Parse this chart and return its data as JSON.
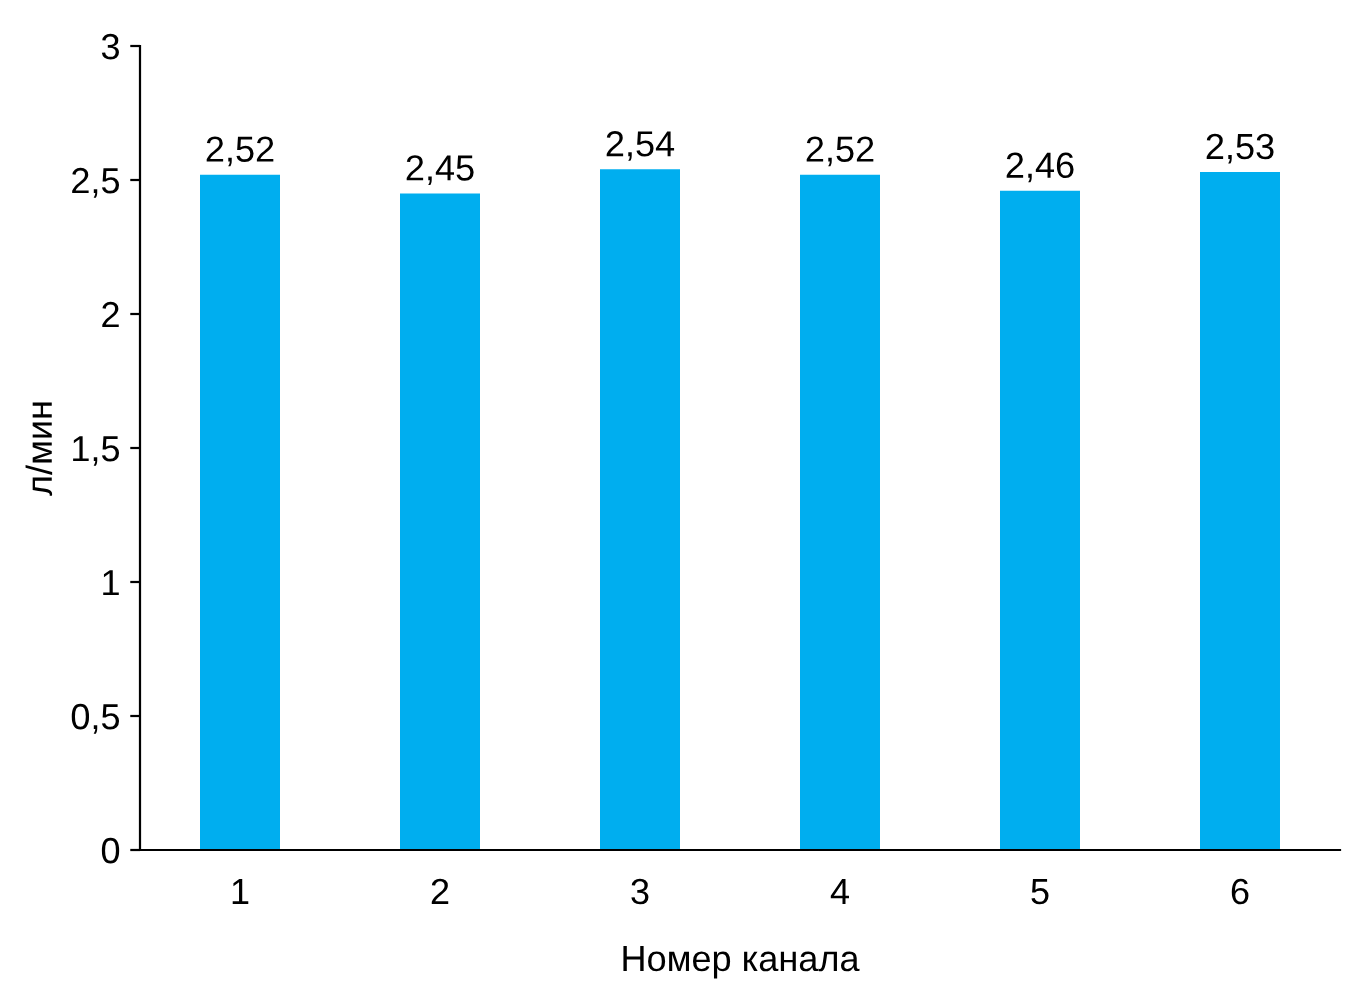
{
  "chart_data": {
    "type": "bar",
    "xlabel": "Номер канала",
    "ylabel": "л/мин",
    "categories": [
      "1",
      "2",
      "3",
      "4",
      "5",
      "6"
    ],
    "values": [
      2.52,
      2.45,
      2.54,
      2.52,
      2.46,
      2.53
    ],
    "value_labels": [
      "2,52",
      "2,45",
      "2,54",
      "2,52",
      "2,46",
      "2,53"
    ],
    "color": "#00aeef",
    "ylim": [
      0,
      3
    ],
    "yticks": [
      0,
      {
        "value": 0.5,
        "label": "0,5"
      },
      1,
      {
        "value": 1.5,
        "label": "1,5"
      },
      2,
      {
        "value": 2.5,
        "label": "2,5"
      },
      3
    ],
    "grid": false
  }
}
